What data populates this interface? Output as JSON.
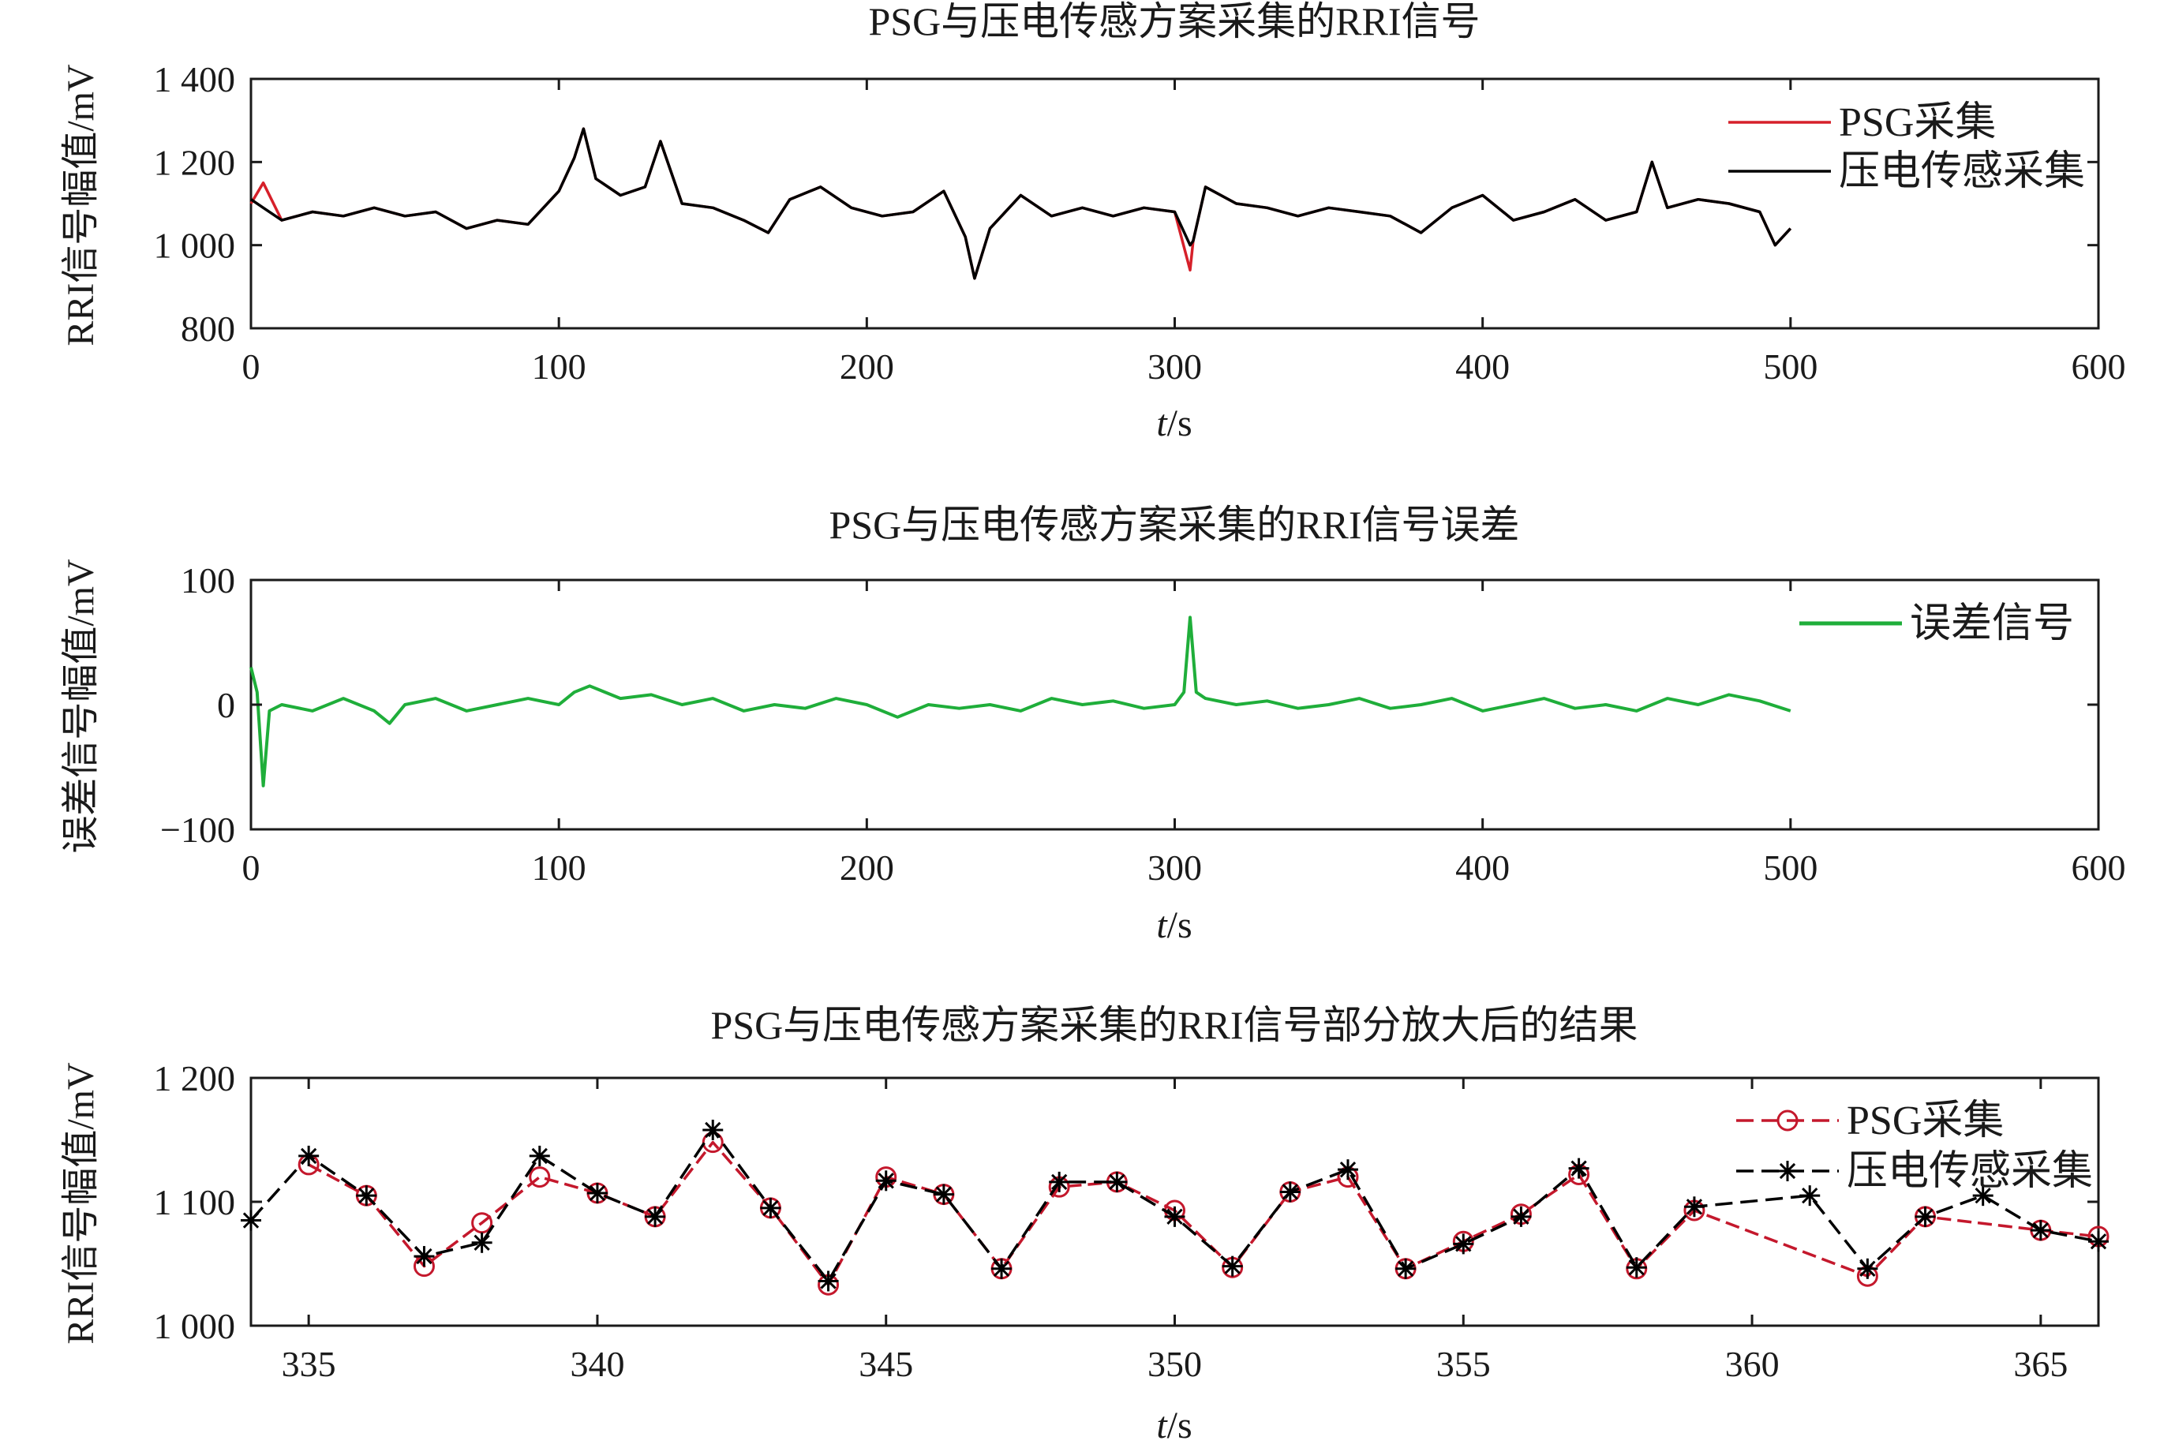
{
  "chart_data": [
    {
      "type": "line",
      "title": "PSG与压电传感方案采集的RRI信号",
      "xlabel_italic": "t",
      "xlabel_unit": "/s",
      "ylabel": "RRI信号幅值/mV",
      "xlim": [
        0,
        600
      ],
      "ylim": [
        800,
        1400
      ],
      "xticks": [
        0,
        100,
        200,
        300,
        400,
        500,
        600
      ],
      "yticks": [
        800,
        1000,
        1200,
        1400
      ],
      "ytick_labels": [
        "800",
        "1 000",
        "1 200",
        "1 400"
      ],
      "grid": false,
      "legend_position": "top-right",
      "series": [
        {
          "name": "PSG采集",
          "color": "#d6202a",
          "x": [
            0,
            4,
            10,
            20,
            30,
            40,
            50,
            60,
            70,
            80,
            90,
            100,
            105,
            108,
            112,
            120,
            128,
            133,
            140,
            150,
            160,
            168,
            175,
            185,
            195,
            205,
            215,
            225,
            232,
            235,
            240,
            250,
            260,
            270,
            280,
            290,
            300,
            305,
            306,
            310,
            320,
            330,
            340,
            350,
            360,
            370,
            380,
            390,
            400,
            410,
            420,
            430,
            440,
            450,
            455,
            460,
            470,
            480,
            490,
            495,
            500
          ],
          "y": [
            1100,
            1150,
            1060,
            1080,
            1070,
            1090,
            1070,
            1080,
            1040,
            1060,
            1050,
            1130,
            1210,
            1280,
            1160,
            1120,
            1140,
            1250,
            1100,
            1090,
            1060,
            1030,
            1110,
            1140,
            1090,
            1070,
            1080,
            1130,
            1020,
            920,
            1040,
            1120,
            1070,
            1090,
            1070,
            1090,
            1080,
            940,
            1010,
            1140,
            1100,
            1090,
            1070,
            1090,
            1080,
            1070,
            1030,
            1090,
            1120,
            1060,
            1080,
            1110,
            1060,
            1080,
            1200,
            1090,
            1110,
            1100,
            1080,
            1000,
            1040
          ]
        },
        {
          "name": "压电传感采集",
          "color": "#000000",
          "x": [
            0,
            4,
            10,
            20,
            30,
            40,
            50,
            60,
            70,
            80,
            90,
            100,
            105,
            108,
            112,
            120,
            128,
            133,
            140,
            150,
            160,
            168,
            175,
            185,
            195,
            205,
            215,
            225,
            232,
            235,
            240,
            250,
            260,
            270,
            280,
            290,
            300,
            305,
            306,
            310,
            320,
            330,
            340,
            350,
            360,
            370,
            380,
            390,
            400,
            410,
            420,
            430,
            440,
            450,
            455,
            460,
            470,
            480,
            490,
            495,
            500
          ],
          "y": [
            1110,
            1090,
            1060,
            1080,
            1070,
            1090,
            1070,
            1080,
            1040,
            1060,
            1050,
            1130,
            1210,
            1280,
            1160,
            1120,
            1140,
            1250,
            1100,
            1090,
            1060,
            1030,
            1110,
            1140,
            1090,
            1070,
            1080,
            1130,
            1020,
            920,
            1040,
            1120,
            1070,
            1090,
            1070,
            1090,
            1080,
            1000,
            1010,
            1140,
            1100,
            1090,
            1070,
            1090,
            1080,
            1070,
            1030,
            1090,
            1120,
            1060,
            1080,
            1110,
            1060,
            1080,
            1200,
            1090,
            1110,
            1100,
            1080,
            1000,
            1040
          ]
        }
      ]
    },
    {
      "type": "line",
      "title": "PSG与压电传感方案采集的RRI信号误差",
      "xlabel_italic": "t",
      "xlabel_unit": "/s",
      "ylabel": "误差信号幅值/mV",
      "xlim": [
        0,
        600
      ],
      "ylim": [
        -100,
        100
      ],
      "xticks": [
        0,
        100,
        200,
        300,
        400,
        500,
        600
      ],
      "yticks": [
        -100,
        0,
        100
      ],
      "ytick_labels": [
        "−100",
        "0",
        "100"
      ],
      "grid": false,
      "legend_position": "top-right",
      "series": [
        {
          "name": "误差信号",
          "color": "#1fae3a",
          "x": [
            0,
            2,
            4,
            6,
            10,
            20,
            30,
            40,
            45,
            50,
            60,
            70,
            80,
            90,
            100,
            105,
            110,
            120,
            130,
            140,
            150,
            160,
            170,
            180,
            190,
            200,
            210,
            220,
            230,
            240,
            250,
            260,
            270,
            280,
            290,
            300,
            303,
            305,
            307,
            310,
            320,
            330,
            340,
            350,
            360,
            370,
            380,
            390,
            400,
            410,
            420,
            430,
            440,
            450,
            460,
            470,
            480,
            490,
            500
          ],
          "y": [
            30,
            10,
            -65,
            -5,
            0,
            -5,
            5,
            -5,
            -15,
            0,
            5,
            -5,
            0,
            5,
            0,
            10,
            15,
            5,
            8,
            0,
            5,
            -5,
            0,
            -3,
            5,
            0,
            -10,
            0,
            -3,
            0,
            -5,
            5,
            0,
            3,
            -3,
            0,
            10,
            70,
            10,
            5,
            0,
            3,
            -3,
            0,
            5,
            -3,
            0,
            5,
            -5,
            0,
            5,
            -3,
            0,
            -5,
            5,
            0,
            8,
            3,
            -5
          ]
        }
      ]
    },
    {
      "type": "line",
      "title": "PSG与压电传感方案采集的RRI信号部分放大后的结果",
      "xlabel_italic": "t",
      "xlabel_unit": "/s",
      "ylabel": "RRI信号幅值/mV",
      "xlim": [
        334,
        366
      ],
      "ylim": [
        1000,
        1200
      ],
      "xticks": [
        335,
        340,
        345,
        350,
        355,
        360,
        365
      ],
      "yticks": [
        1000,
        1100,
        1200
      ],
      "ytick_labels": [
        "1 000",
        "1 100",
        "1 200"
      ],
      "grid": false,
      "legend_position": "top-right",
      "series": [
        {
          "name": "PSG采集",
          "color": "#c4182c",
          "marker": "circle",
          "x": [
            335,
            336,
            337,
            338,
            339,
            340,
            341,
            342,
            343,
            344,
            345,
            346,
            347,
            348,
            349,
            350,
            351,
            352,
            353,
            354,
            355,
            356,
            357,
            358,
            359,
            362,
            363,
            365,
            366
          ],
          "y": [
            1130,
            1105,
            1048,
            1083,
            1120,
            1107,
            1088,
            1148,
            1095,
            1033,
            1120,
            1106,
            1046,
            1112,
            1116,
            1093,
            1047,
            1108,
            1120,
            1046,
            1068,
            1090,
            1122,
            1046,
            1093,
            1040,
            1088,
            1077,
            1072
          ]
        },
        {
          "name": "压电传感采集",
          "color": "#000000",
          "marker": "star",
          "x": [
            334,
            335,
            336,
            337,
            338,
            339,
            340,
            341,
            342,
            343,
            344,
            345,
            346,
            347,
            348,
            349,
            350,
            351,
            352,
            353,
            354,
            355,
            356,
            357,
            358,
            359,
            361,
            362,
            363,
            364,
            365,
            366
          ],
          "y": [
            1085,
            1137,
            1105,
            1056,
            1067,
            1137,
            1107,
            1088,
            1158,
            1095,
            1036,
            1117,
            1106,
            1046,
            1116,
            1116,
            1088,
            1048,
            1108,
            1126,
            1046,
            1066,
            1088,
            1127,
            1047,
            1096,
            1105,
            1046,
            1088,
            1105,
            1077,
            1068
          ]
        }
      ]
    }
  ]
}
